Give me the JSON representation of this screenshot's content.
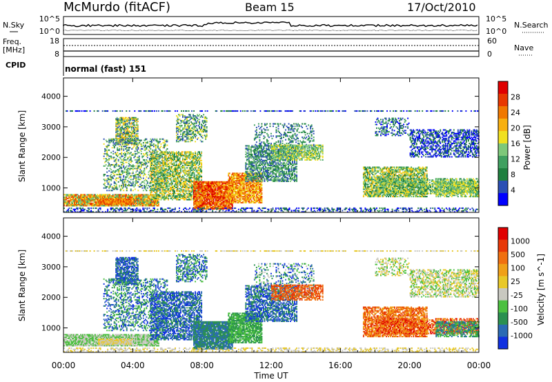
{
  "header": {
    "station": "McMurdo (fitACF)",
    "beam": "Beam 15",
    "date": "17/Oct/2010"
  },
  "colors": {
    "power": [
      "#0000ff",
      "#2a4fb4",
      "#1f7f3f",
      "#40a060",
      "#7ec87a",
      "#f0e020",
      "#f8b010",
      "#f07800",
      "#e83800",
      "#e00000"
    ],
    "velocity": [
      "#1030e0",
      "#2a6ab4",
      "#2a9050",
      "#4cc040",
      "#c8c8c0",
      "#e8c828",
      "#f0a018",
      "#f07010",
      "#e83808",
      "#e00000"
    ]
  },
  "chart_data": [
    {
      "type": "line",
      "panel": "noise",
      "left_label": "N.Sky",
      "right_label": "N.Search",
      "left_ticks": [
        "10^5",
        "10^0"
      ],
      "right_ticks": [
        "10^5",
        "10^0"
      ]
    },
    {
      "type": "line",
      "panel": "frequency",
      "left_label_top": "Freq.",
      "left_label_bottom": "[MHz]",
      "left_ticks": [
        "18",
        "8"
      ],
      "ylim": [
        8,
        18
      ],
      "right_label": "Nave",
      "right_ticks": [
        "60",
        "0"
      ],
      "right_ylim": [
        0,
        60
      ]
    },
    {
      "type": "table",
      "panel": "cpid",
      "label": "CPID",
      "value": "normal (fast) 151"
    },
    {
      "type": "heatmap",
      "panel": "power",
      "ylabel": "Slant Range [km]",
      "ylim": [
        200,
        4600
      ],
      "yticks": [
        1000,
        2000,
        3000,
        4000
      ],
      "colorbar_label": "Power [dB]",
      "colorbar_ticks": [
        4,
        8,
        12,
        16,
        20,
        24,
        28
      ]
    },
    {
      "type": "heatmap",
      "panel": "velocity",
      "ylabel": "Slant Range [km]",
      "ylim": [
        200,
        4600
      ],
      "yticks": [
        1000,
        2000,
        3000,
        4000
      ],
      "colorbar_label": "Velocity [m s^-1]",
      "colorbar_ticks": [
        "1000",
        "500",
        "100",
        "25",
        "-25",
        "-100",
        "-500",
        "-1000"
      ]
    }
  ],
  "xaxis": {
    "label": "Time UT",
    "ticks": [
      "00:00",
      "04:00",
      "08:00",
      "12:00",
      "16:00",
      "20:00",
      "00:00"
    ],
    "xlim_hours": [
      0,
      24
    ]
  }
}
